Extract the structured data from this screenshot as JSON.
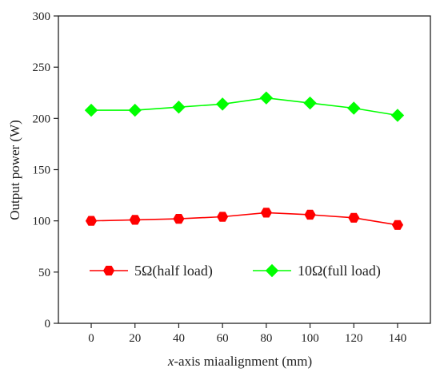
{
  "chart_data": {
    "type": "line",
    "xlabel_italic": "x",
    "xlabel_rest": "-axis miaalignment (mm)",
    "ylabel": "Output power (W)",
    "x": [
      0,
      20,
      40,
      60,
      80,
      100,
      120,
      140
    ],
    "xlim": [
      -15,
      155
    ],
    "ylim": [
      0,
      300
    ],
    "xticks": [
      0,
      20,
      40,
      60,
      80,
      100,
      120,
      140
    ],
    "yticks": [
      0,
      50,
      100,
      150,
      200,
      250,
      300
    ],
    "grid": false,
    "legend_placement": "bottom",
    "series": [
      {
        "name": "5Ω(half load)",
        "values": [
          100,
          101,
          102,
          104,
          108,
          106,
          103,
          96
        ],
        "color": "#ff0000",
        "marker": "hexagon"
      },
      {
        "name": "10Ω(full load)",
        "values": [
          208,
          208,
          211,
          214,
          220,
          215,
          210,
          203
        ],
        "color": "#00ff00",
        "marker": "diamond"
      }
    ]
  }
}
